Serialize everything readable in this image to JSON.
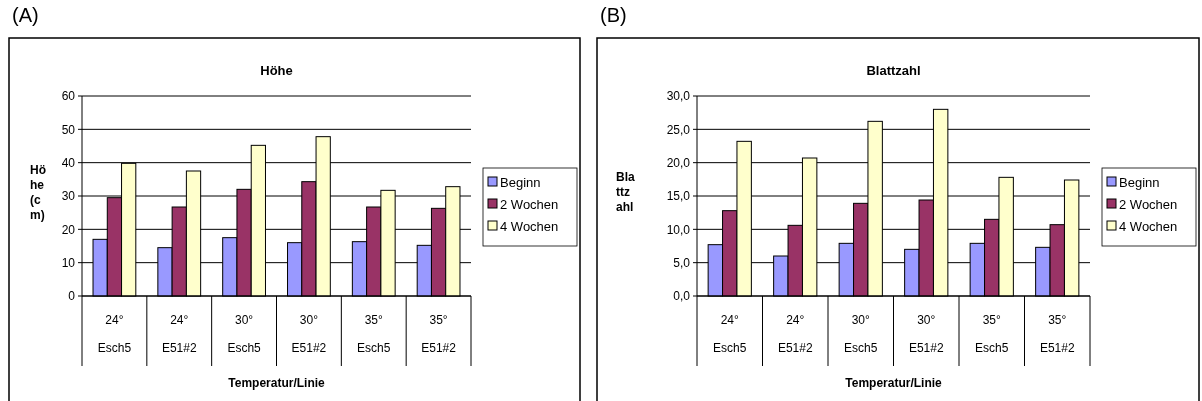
{
  "chart_data": [
    {
      "type": "bar",
      "annotations": [
        "(A)"
      ],
      "title": "Höhe",
      "xlabel": "Temperatur/Linie",
      "ylabel": "Höhe (cm)",
      "categories": [
        "24°\nEsch5",
        "24°\nE51#2",
        "30°\nEsch5",
        "30°\nE51#2",
        "35°\nEsch5",
        "35°\nE51#2"
      ],
      "ylim": [
        0,
        60
      ],
      "yticks": [
        0,
        10,
        20,
        30,
        40,
        50,
        60
      ],
      "grid": "y",
      "legend": "right",
      "series": [
        {
          "name": "Beginn",
          "color": "#9999ff",
          "values": [
            17,
            14.5,
            17.5,
            16,
            16.3,
            15.2
          ]
        },
        {
          "name": "2 Wochen",
          "color": "#993366",
          "values": [
            29.5,
            26.7,
            32,
            34.3,
            26.7,
            26.3
          ]
        },
        {
          "name": "4 Wochen",
          "color": "#ffffcc",
          "values": [
            39.8,
            37.5,
            45.2,
            47.8,
            31.7,
            32.8
          ]
        }
      ]
    },
    {
      "type": "bar",
      "annotations": [
        "(B)"
      ],
      "title": "Blattzahl",
      "xlabel": "Temperatur/Linie",
      "ylabel": "Blattzahl",
      "categories": [
        "24°\nEsch5",
        "24°\nE51#2",
        "30°\nEsch5",
        "30°\nE51#2",
        "35°\nEsch5",
        "35°\nE51#2"
      ],
      "ylim": [
        0,
        30
      ],
      "yticks": [
        {
          "value": 0,
          "label": "0,0"
        },
        {
          "value": 5,
          "label": "5,0"
        },
        {
          "value": 10,
          "label": "10,0"
        },
        {
          "value": 15,
          "label": "15,0"
        },
        {
          "value": 20,
          "label": "20,0"
        },
        {
          "value": 25,
          "label": "25,0"
        },
        {
          "value": 30,
          "label": "30,0"
        }
      ],
      "grid": "y",
      "legend": "right",
      "series": [
        {
          "name": "Beginn",
          "color": "#9999ff",
          "values": [
            7.7,
            6.0,
            7.9,
            7.0,
            7.9,
            7.3
          ]
        },
        {
          "name": "2 Wochen",
          "color": "#993366",
          "values": [
            12.8,
            10.6,
            13.9,
            14.4,
            11.5,
            10.7
          ]
        },
        {
          "name": "4 Wochen",
          "color": "#ffffcc",
          "values": [
            23.2,
            20.7,
            26.2,
            28.0,
            17.8,
            17.4
          ]
        }
      ]
    }
  ]
}
